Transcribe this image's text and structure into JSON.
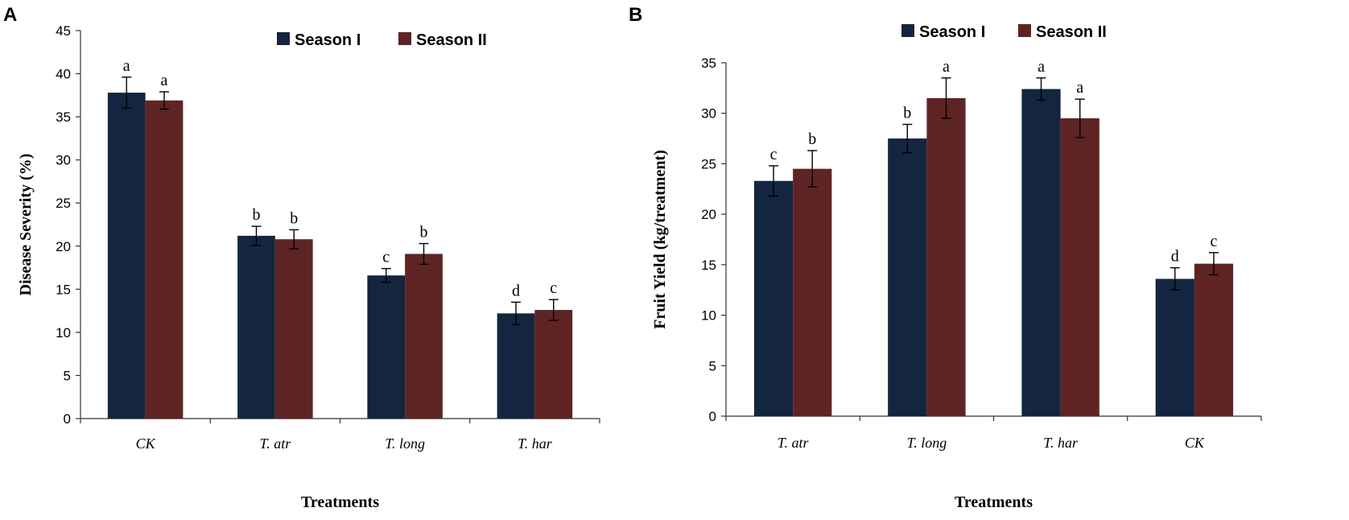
{
  "colors": {
    "season1": "#14253f",
    "season2": "#5e2424"
  },
  "chart_data": [
    {
      "panel": "A",
      "type": "bar",
      "xlabel": "Treatments",
      "ylabel": "Disease Severity (%)",
      "ylim": [
        0,
        45
      ],
      "ytick_step": 5,
      "legend_placement": "top-center",
      "categories": [
        "CK",
        "T. atr",
        "T. long",
        "T. har"
      ],
      "series": [
        {
          "name": "Season I",
          "values": [
            37.8,
            21.2,
            16.6,
            12.2
          ],
          "errors": [
            1.8,
            1.1,
            0.8,
            1.3
          ],
          "labels": [
            "a",
            "b",
            "c",
            "d"
          ]
        },
        {
          "name": "Season II",
          "values": [
            36.9,
            20.8,
            19.1,
            12.6
          ],
          "errors": [
            1.0,
            1.1,
            1.2,
            1.2
          ],
          "labels": [
            "a",
            "b",
            "b",
            "c"
          ]
        }
      ]
    },
    {
      "panel": "B",
      "type": "bar",
      "xlabel": "Treatments",
      "ylabel": "Fruit Yield (kg/treatment)",
      "ylim": [
        0,
        35
      ],
      "ytick_step": 5,
      "legend_placement": "top-center",
      "categories": [
        "T. atr",
        "T. long",
        "T. har",
        "CK"
      ],
      "series": [
        {
          "name": "Season I",
          "values": [
            23.3,
            27.5,
            32.4,
            13.6
          ],
          "errors": [
            1.5,
            1.4,
            1.1,
            1.1
          ],
          "labels": [
            "c",
            "b",
            "a",
            "d"
          ]
        },
        {
          "name": "Season II",
          "values": [
            24.5,
            31.5,
            29.5,
            15.1
          ],
          "errors": [
            1.8,
            2.0,
            1.9,
            1.1
          ],
          "labels": [
            "b",
            "a",
            "a",
            "c"
          ]
        }
      ]
    }
  ]
}
